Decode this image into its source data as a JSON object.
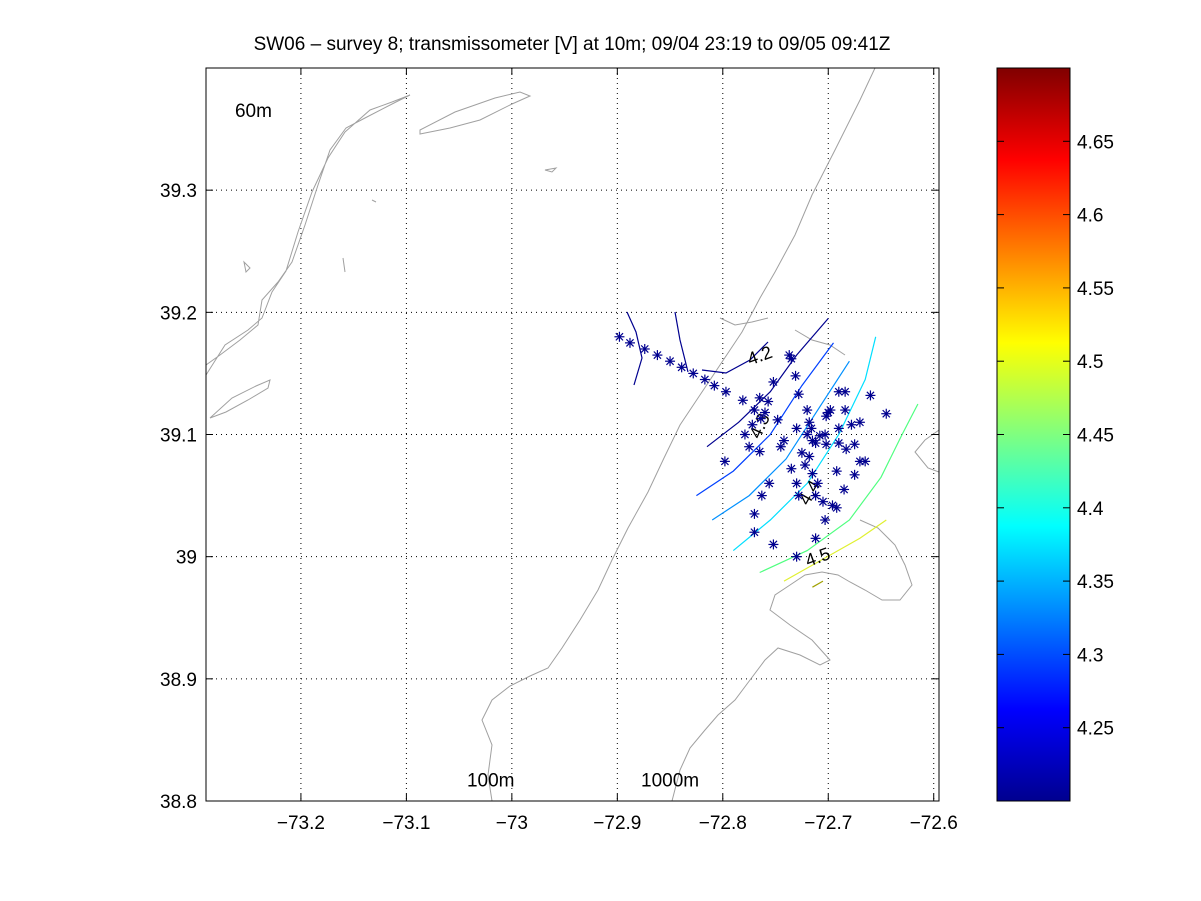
{
  "chart_data": {
    "type": "scatter",
    "title": "SW06 – survey 8; transmissometer [V] at 10m; 09/04 23:19 to 09/05 09:41Z",
    "xlim": [
      -73.29,
      -72.595
    ],
    "ylim": [
      38.8,
      39.4
    ],
    "xticks": [
      -73.2,
      -73.1,
      -73.0,
      -72.9,
      -72.8,
      -72.7,
      -72.6
    ],
    "xtick_labels": [
      "−73.2",
      "−73.1",
      "−73",
      "−72.9",
      "−72.8",
      "−72.7",
      "−72.6"
    ],
    "yticks": [
      38.8,
      38.9,
      39.0,
      39.1,
      39.2,
      39.3
    ],
    "ytick_labels": [
      "38.8",
      "38.9",
      "39",
      "39.1",
      "39.2",
      "39.3"
    ],
    "grid": true,
    "bathymetry_labels": [
      {
        "text": "60m",
        "x": -73.245,
        "y": 39.36
      },
      {
        "text": "100m",
        "x": -73.02,
        "y": 38.812
      },
      {
        "text": "1000m",
        "x": -72.85,
        "y": 38.812
      }
    ],
    "contour_labels": [
      {
        "text": "4.2",
        "x": -72.763,
        "y": 39.16,
        "rotate": -20
      },
      {
        "text": "4.3",
        "x": -72.76,
        "y": 39.105,
        "rotate": -65
      },
      {
        "text": "4.4",
        "x": -72.713,
        "y": 39.05,
        "rotate": -60
      },
      {
        "text": "4.5",
        "x": -72.708,
        "y": 38.995,
        "rotate": -20
      }
    ],
    "contours": [
      {
        "level": 4.2,
        "color": "#00008f",
        "points": [
          [
            -72.815,
            39.09
          ],
          [
            -72.785,
            39.11
          ],
          [
            -72.755,
            39.135
          ],
          [
            -72.73,
            39.165
          ],
          [
            -72.7,
            39.195
          ]
        ]
      },
      {
        "level": 4.25,
        "color": "#0040ff",
        "points": [
          [
            -72.825,
            39.05
          ],
          [
            -72.79,
            39.07
          ],
          [
            -72.755,
            39.1
          ],
          [
            -72.725,
            39.14
          ],
          [
            -72.695,
            39.175
          ]
        ]
      },
      {
        "level": 4.3,
        "color": "#0090ff",
        "points": [
          [
            -72.81,
            39.03
          ],
          [
            -72.775,
            39.05
          ],
          [
            -72.74,
            39.08
          ],
          [
            -72.71,
            39.12
          ],
          [
            -72.68,
            39.16
          ]
        ]
      },
      {
        "level": 4.35,
        "color": "#00dfff",
        "points": [
          [
            -72.79,
            39.005
          ],
          [
            -72.755,
            39.03
          ],
          [
            -72.72,
            39.06
          ],
          [
            -72.69,
            39.1
          ],
          [
            -72.665,
            39.145
          ],
          [
            -72.655,
            39.18
          ]
        ]
      },
      {
        "level": 4.45,
        "color": "#50ff80",
        "points": [
          [
            -72.765,
            38.987
          ],
          [
            -72.72,
            39.005
          ],
          [
            -72.68,
            39.03
          ],
          [
            -72.65,
            39.065
          ],
          [
            -72.63,
            39.1
          ],
          [
            -72.615,
            39.125
          ]
        ]
      },
      {
        "level": 4.5,
        "color": "#e0f030",
        "points": [
          [
            -72.742,
            38.98
          ],
          [
            -72.705,
            38.998
          ],
          [
            -72.67,
            39.015
          ],
          [
            -72.645,
            39.03
          ]
        ]
      },
      {
        "level": 4.55,
        "color": "#a0a000",
        "points": [
          [
            -72.715,
            38.975
          ],
          [
            -72.705,
            38.98
          ]
        ]
      }
    ],
    "stations": [
      [
        -72.898,
        39.18
      ],
      [
        -72.888,
        39.175
      ],
      [
        -72.874,
        39.17
      ],
      [
        -72.862,
        39.165
      ],
      [
        -72.85,
        39.16
      ],
      [
        -72.839,
        39.155
      ],
      [
        -72.828,
        39.15
      ],
      [
        -72.817,
        39.145
      ],
      [
        -72.808,
        39.14
      ],
      [
        -72.797,
        39.135
      ],
      [
        -72.781,
        39.128
      ],
      [
        -72.737,
        39.165
      ],
      [
        -72.735,
        39.162
      ],
      [
        -72.731,
        39.148
      ],
      [
        -72.728,
        39.133
      ],
      [
        -72.752,
        39.143
      ],
      [
        -72.765,
        39.13
      ],
      [
        -72.77,
        39.12
      ],
      [
        -72.757,
        39.127
      ],
      [
        -72.76,
        39.118
      ],
      [
        -72.764,
        39.113
      ],
      [
        -72.772,
        39.108
      ],
      [
        -72.779,
        39.1
      ],
      [
        -72.748,
        39.112
      ],
      [
        -72.742,
        39.095
      ],
      [
        -72.73,
        39.105
      ],
      [
        -72.72,
        39.1
      ],
      [
        -72.716,
        39.105
      ],
      [
        -72.712,
        39.093
      ],
      [
        -72.718,
        39.082
      ],
      [
        -72.722,
        39.075
      ],
      [
        -72.735,
        39.072
      ],
      [
        -72.73,
        39.06
      ],
      [
        -72.728,
        39.05
      ],
      [
        -72.715,
        39.068
      ],
      [
        -72.71,
        39.06
      ],
      [
        -72.705,
        39.045
      ],
      [
        -72.712,
        39.05
      ],
      [
        -72.696,
        39.042
      ],
      [
        -72.692,
        39.04
      ],
      [
        -72.685,
        39.055
      ],
      [
        -72.692,
        39.07
      ],
      [
        -72.675,
        39.067
      ],
      [
        -72.67,
        39.078
      ],
      [
        -72.665,
        39.078
      ],
      [
        -72.675,
        39.092
      ],
      [
        -72.67,
        39.11
      ],
      [
        -72.683,
        39.088
      ],
      [
        -72.69,
        39.093
      ],
      [
        -72.702,
        39.092
      ],
      [
        -72.703,
        39.1
      ],
      [
        -72.708,
        39.099
      ],
      [
        -72.702,
        39.115
      ],
      [
        -72.7,
        39.118
      ],
      [
        -72.698,
        39.12
      ],
      [
        -72.69,
        39.105
      ],
      [
        -72.678,
        39.108
      ],
      [
        -72.684,
        39.12
      ],
      [
        -72.69,
        39.135
      ],
      [
        -72.684,
        39.135
      ],
      [
        -72.66,
        39.132
      ],
      [
        -72.645,
        39.117
      ],
      [
        -72.72,
        39.12
      ],
      [
        -72.715,
        39.095
      ],
      [
        -72.725,
        39.085
      ],
      [
        -72.756,
        39.06
      ],
      [
        -72.763,
        39.05
      ],
      [
        -72.77,
        39.035
      ],
      [
        -72.77,
        39.02
      ],
      [
        -72.752,
        39.01
      ],
      [
        -72.73,
        39.0
      ],
      [
        -72.712,
        39.015
      ],
      [
        -72.703,
        39.03
      ],
      [
        -72.718,
        39.11
      ],
      [
        -72.775,
        39.09
      ],
      [
        -72.765,
        39.086
      ],
      [
        -72.798,
        39.078
      ],
      [
        -72.745,
        39.09
      ]
    ],
    "colorbar": {
      "min": 4.2,
      "max": 4.7,
      "ticks": [
        4.25,
        4.3,
        4.35,
        4.4,
        4.45,
        4.5,
        4.55,
        4.6,
        4.65
      ],
      "tick_labels": [
        "4.25",
        "4.3",
        "4.35",
        "4.4",
        "4.45",
        "4.5",
        "4.55",
        "4.6",
        "4.65"
      ]
    },
    "colors": {
      "coastline": "#a0a0a0",
      "stations": "#00008f",
      "grid": "#000000"
    }
  }
}
